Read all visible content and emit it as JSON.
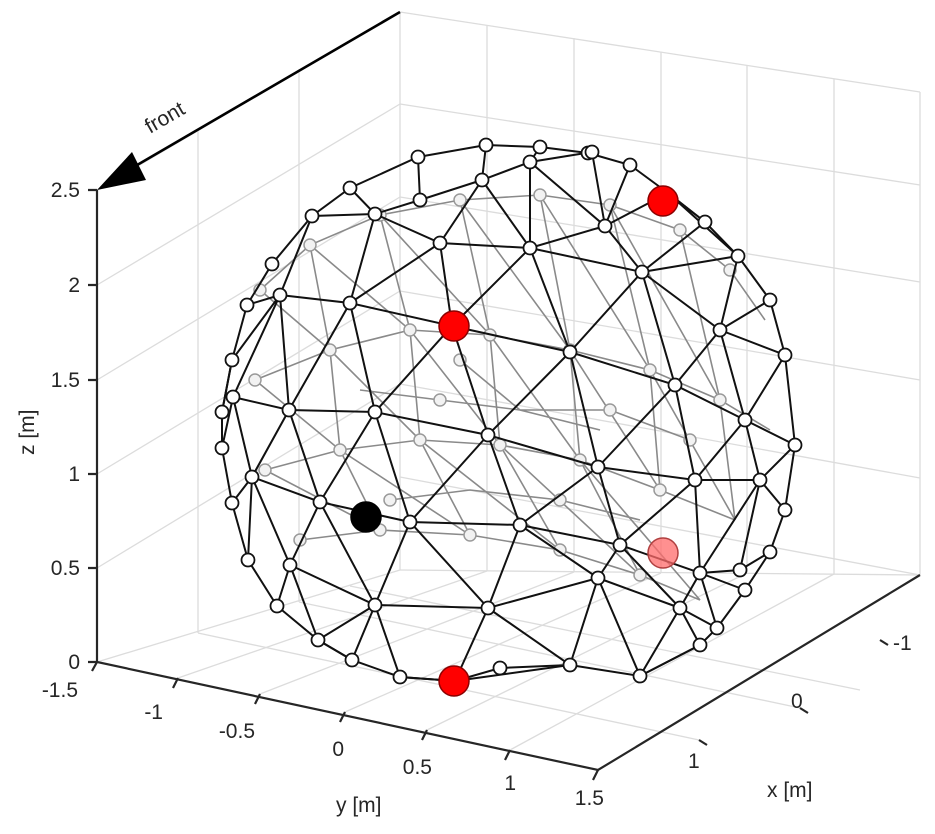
{
  "annotation": {
    "front_label": "front"
  },
  "axes": {
    "zlabel": "z [m]",
    "ylabel": "y [m]",
    "xlabel": "x [m]",
    "z_ticks": [
      "2.5",
      "2",
      "1.5",
      "1",
      "0.5",
      "0"
    ],
    "y_ticks": [
      "-1.5",
      "-1",
      "-0.5",
      "0",
      "0.5",
      "1",
      "1.5"
    ],
    "x_ticks": [
      "-1",
      "0",
      "1"
    ]
  },
  "colors": {
    "highlight": "#ff0000",
    "reference": "#000000",
    "mesh": "#111111",
    "grid": "#dcdcdc"
  }
}
